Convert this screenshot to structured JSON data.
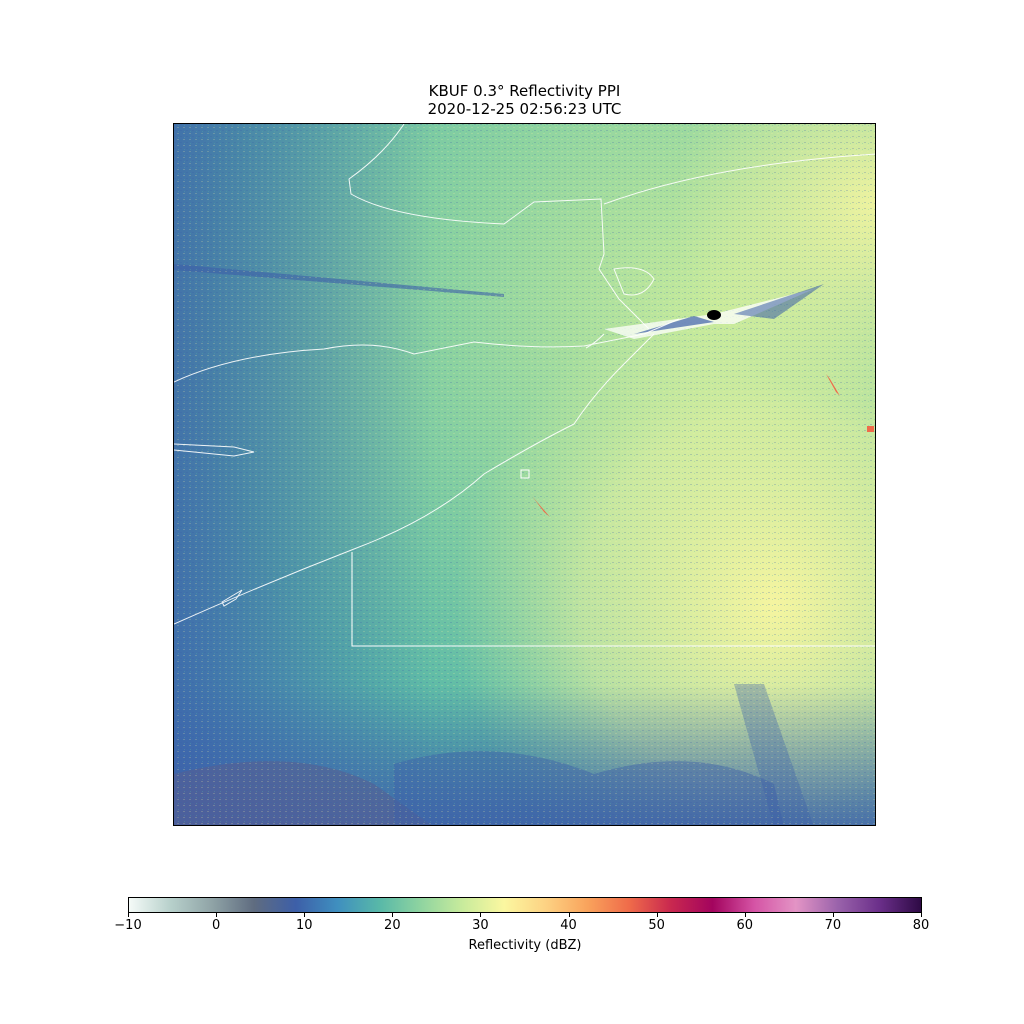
{
  "title": {
    "line1": "KBUF 0.3° Reflectivity PPI",
    "line2": "2020-12-25 02:56:23 UTC"
  },
  "map": {
    "radar_site": "KBUF",
    "features": [
      "radar-reflectivity-field",
      "coastline-lines",
      "state-border-lines",
      "radar-site-marker",
      "clutter-spikes"
    ]
  },
  "colorbar": {
    "label": "Reflectivity (dBZ)",
    "min": -10,
    "max": 80,
    "ticks": [
      "−10",
      "0",
      "10",
      "20",
      "30",
      "40",
      "50",
      "60",
      "70",
      "80"
    ],
    "colors": [
      "#f5fbf8",
      "#b7d0cb",
      "#8fa3a6",
      "#5f6c80",
      "#3d5fa8",
      "#3f8fbf",
      "#58b8a8",
      "#8fd4a0",
      "#c8eb9c",
      "#fbf7a0",
      "#fdd283",
      "#f9a35c",
      "#ef6b4a",
      "#c9284f",
      "#a3045e",
      "#d554a5",
      "#e394c5",
      "#9a63ab",
      "#6b2f8a",
      "#2e0a45"
    ]
  }
}
